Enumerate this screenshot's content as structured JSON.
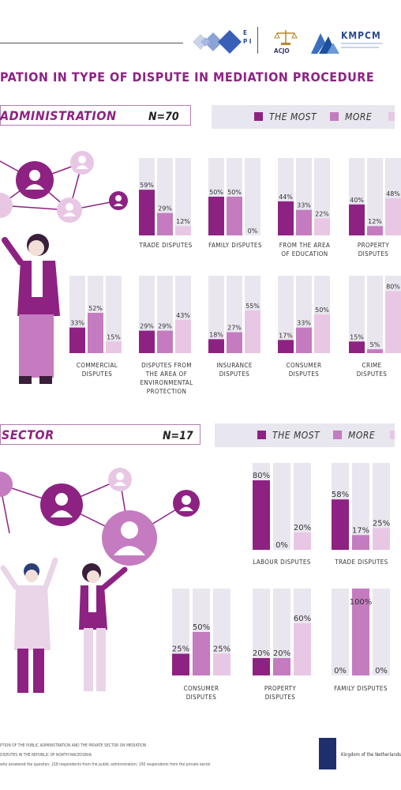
{
  "header": {
    "title": "PATION IN TYPE OF DISPUTE IN MEDIATION PROCEDURE",
    "logos": {
      "epi": "E P I",
      "acjo": "ACJO",
      "kmpcm": "KMPCM"
    }
  },
  "sections": [
    {
      "label": "ADMINISTRATION",
      "n": "N=70",
      "legend": [
        "THE MOST",
        "MORE"
      ]
    },
    {
      "label": "E SECTOR",
      "n": "N=17",
      "legend": [
        "THE MOST",
        "MORE"
      ]
    }
  ],
  "colors": {
    "most": "#8e2283",
    "more": "#c47bc0",
    "less": "#e8c7e4",
    "bg_bar": "#e9e6ef",
    "title": "#8e2283"
  },
  "chart_data": [
    {
      "type": "bar",
      "categories": [
        "TRADE DISPUTES"
      ],
      "series": [
        {
          "name": "THE MOST",
          "values": [
            59
          ]
        },
        {
          "name": "MORE",
          "values": [
            29
          ]
        },
        {
          "values": [
            12
          ]
        }
      ],
      "labels": [
        "59%",
        "29%",
        "12%"
      ],
      "ylim": [
        0,
        100
      ]
    },
    {
      "type": "bar",
      "categories": [
        "FAMILY DISPUTES"
      ],
      "series": [
        {
          "name": "THE MOST",
          "values": [
            50
          ]
        },
        {
          "name": "MORE",
          "values": [
            50
          ]
        },
        {
          "values": [
            0
          ]
        }
      ],
      "labels": [
        "50%",
        "50%",
        "0%"
      ],
      "ylim": [
        0,
        100
      ]
    },
    {
      "type": "bar",
      "categories": [
        "FROM THE AREA OF EDUCATION"
      ],
      "series": [
        {
          "name": "THE MOST",
          "values": [
            44
          ]
        },
        {
          "name": "MORE",
          "values": [
            33
          ]
        },
        {
          "values": [
            22
          ]
        }
      ],
      "labels": [
        "44%",
        "33%",
        "22%"
      ],
      "ylim": [
        0,
        100
      ]
    },
    {
      "type": "bar",
      "categories": [
        "PROPERTY DISPUTES"
      ],
      "series": [
        {
          "name": "THE MOST",
          "values": [
            40
          ]
        },
        {
          "name": "MORE",
          "values": [
            12
          ]
        },
        {
          "values": [
            48
          ]
        }
      ],
      "labels": [
        "40%",
        "12%",
        "48%"
      ],
      "ylim": [
        0,
        100
      ]
    },
    {
      "type": "bar",
      "categories": [
        "COMMERCIAL DISPUTES"
      ],
      "series": [
        {
          "name": "THE MOST",
          "values": [
            33
          ]
        },
        {
          "name": "MORE",
          "values": [
            52
          ]
        },
        {
          "values": [
            15
          ]
        }
      ],
      "labels": [
        "33%",
        "52%",
        "15%"
      ],
      "ylim": [
        0,
        100
      ]
    },
    {
      "type": "bar",
      "categories": [
        "DISPUTES FROM THE AREA OF ENVIRONMENTAL PROTECTION"
      ],
      "series": [
        {
          "name": "THE MOST",
          "values": [
            29
          ]
        },
        {
          "name": "MORE",
          "values": [
            29
          ]
        },
        {
          "values": [
            43
          ]
        }
      ],
      "labels": [
        "29%",
        "29%",
        "43%"
      ],
      "ylim": [
        0,
        100
      ]
    },
    {
      "type": "bar",
      "categories": [
        "INSURANCE DISPUTES"
      ],
      "series": [
        {
          "name": "THE MOST",
          "values": [
            18
          ]
        },
        {
          "name": "MORE",
          "values": [
            27
          ]
        },
        {
          "values": [
            55
          ]
        }
      ],
      "labels": [
        "18%",
        "27%",
        "55%"
      ],
      "ylim": [
        0,
        100
      ]
    },
    {
      "type": "bar",
      "categories": [
        "CONSUMER DISPUTES"
      ],
      "series": [
        {
          "name": "THE MOST",
          "values": [
            17
          ]
        },
        {
          "name": "MORE",
          "values": [
            33
          ]
        },
        {
          "values": [
            50
          ]
        }
      ],
      "labels": [
        "17%",
        "33%",
        "50%"
      ],
      "ylim": [
        0,
        100
      ]
    },
    {
      "type": "bar",
      "categories": [
        "CRIME DISPUTES"
      ],
      "series": [
        {
          "name": "THE MOST",
          "values": [
            15
          ]
        },
        {
          "name": "MORE",
          "values": [
            5
          ]
        },
        {
          "values": [
            80
          ]
        }
      ],
      "labels": [
        "15%",
        "5%",
        "80%"
      ],
      "ylim": [
        0,
        100
      ]
    },
    {
      "type": "bar",
      "categories": [
        "LABOUR DISPUTES"
      ],
      "series": [
        {
          "name": "THE MOST",
          "values": [
            80
          ]
        },
        {
          "name": "MORE",
          "values": [
            0
          ]
        },
        {
          "values": [
            20
          ]
        }
      ],
      "labels": [
        "80%",
        "0%",
        "20%"
      ],
      "ylim": [
        0,
        100
      ]
    },
    {
      "type": "bar",
      "categories": [
        "TRADE DISPUTES"
      ],
      "series": [
        {
          "name": "THE MOST",
          "values": [
            58
          ]
        },
        {
          "name": "MORE",
          "values": [
            17
          ]
        },
        {
          "values": [
            25
          ]
        }
      ],
      "labels": [
        "58%",
        "17%",
        "25%"
      ],
      "ylim": [
        0,
        100
      ]
    },
    {
      "type": "bar",
      "categories": [
        "CONSUMER DISPUTES"
      ],
      "series": [
        {
          "name": "THE MOST",
          "values": [
            25
          ]
        },
        {
          "name": "MORE",
          "values": [
            50
          ]
        },
        {
          "values": [
            25
          ]
        }
      ],
      "labels": [
        "25%",
        "50%",
        "25%"
      ],
      "ylim": [
        0,
        100
      ]
    },
    {
      "type": "bar",
      "categories": [
        "PROPERTY DISPUTES"
      ],
      "series": [
        {
          "name": "THE MOST",
          "values": [
            20
          ]
        },
        {
          "name": "MORE",
          "values": [
            20
          ]
        },
        {
          "values": [
            60
          ]
        }
      ],
      "labels": [
        "20%",
        "20%",
        "60%"
      ],
      "ylim": [
        0,
        100
      ]
    },
    {
      "type": "bar",
      "categories": [
        "FAMILY DISPUTES"
      ],
      "series": [
        {
          "name": "THE MOST",
          "values": [
            0
          ]
        },
        {
          "name": "MORE",
          "values": [
            100
          ]
        },
        {
          "values": [
            0
          ]
        }
      ],
      "labels": [
        "0%",
        "100%",
        "0%"
      ],
      "ylim": [
        0,
        100
      ]
    }
  ],
  "footer": {
    "lines": [
      "PTION OF THE PUBLIC ADMINISTRATION AND THE PRIVATE SECTOR ON MEDIATION",
      "DISPUTES IN THE REPUBLIC OF NORTH MACEDONIA",
      " who answered the question; 218 respondents from the public administration; 150 respondents from the private sector"
    ],
    "nl": "Kingdom of the Netherlands"
  }
}
